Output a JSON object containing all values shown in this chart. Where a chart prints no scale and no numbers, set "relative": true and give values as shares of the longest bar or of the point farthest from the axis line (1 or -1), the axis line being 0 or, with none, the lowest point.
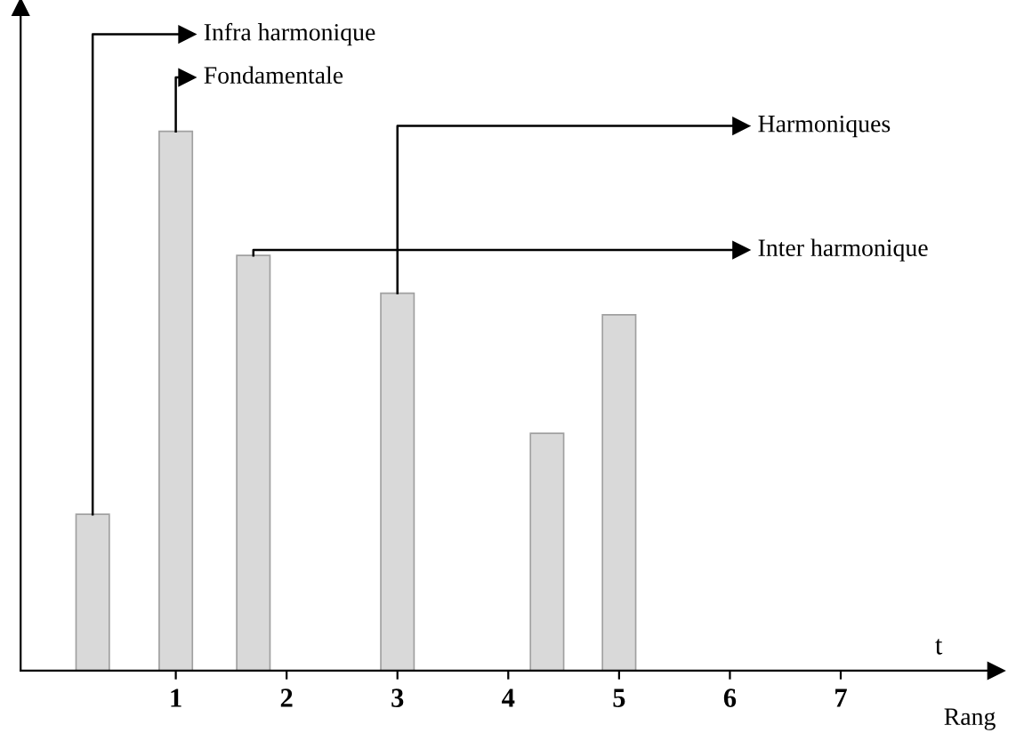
{
  "chart_data": {
    "type": "bar",
    "relative": true,
    "xlabel": "Rang",
    "x": [
      0.25,
      1,
      1.7,
      3,
      4.35,
      5
    ],
    "values": [
      0.29,
      1,
      0.77,
      0.7,
      0.44,
      0.66
    ],
    "color": "#d9d9d9",
    "xlim": [
      -0.4,
      8.4
    ],
    "xticks": [
      1,
      2,
      3,
      4,
      5,
      6,
      7
    ],
    "grid": false,
    "annotations": [
      {
        "text": "Infra harmonique",
        "x": 0.25,
        "y": 0.29
      },
      {
        "text": "Fondamentale",
        "x": 1,
        "y": 1
      },
      {
        "text": "Harmoniques",
        "x": 3,
        "y": 0.7
      },
      {
        "text": "Inter harmonique",
        "x": 1.7,
        "y": 0.77
      },
      "t"
    ]
  }
}
